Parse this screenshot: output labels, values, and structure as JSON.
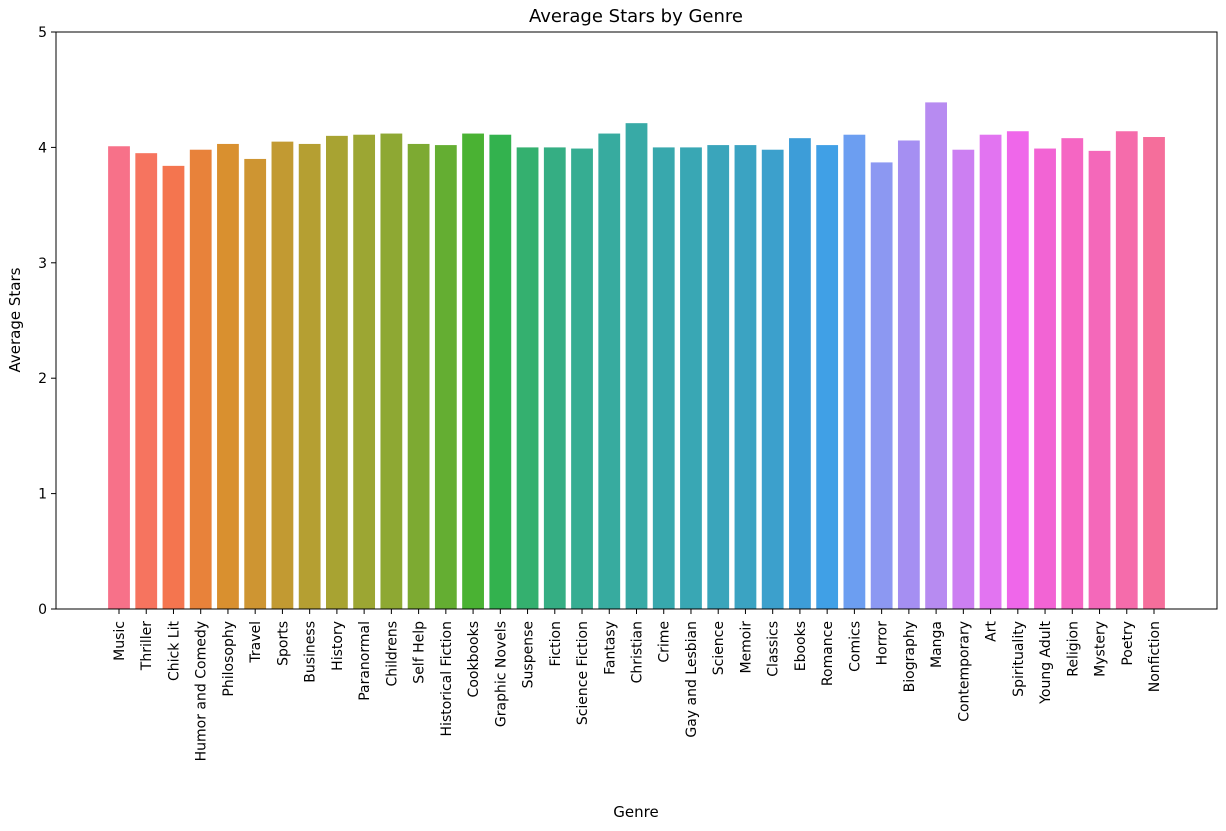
{
  "chart_data": {
    "type": "bar",
    "title": "Average Stars by Genre",
    "xlabel": "Genre",
    "ylabel": "Average Stars",
    "ylim": [
      0,
      5
    ],
    "yticks": [
      0,
      1,
      2,
      3,
      4,
      5
    ],
    "grid": false,
    "categories": [
      "Music",
      "Thriller",
      "Chick Lit",
      "Humor and Comedy",
      "Philosophy",
      "Travel",
      "Sports",
      "Business",
      "History",
      "Paranormal",
      "Childrens",
      "Self Help",
      "Historical Fiction",
      "Cookbooks",
      "Graphic Novels",
      "Suspense",
      "Fiction",
      "Science Fiction",
      "Fantasy",
      "Christian",
      "Crime",
      "Gay and Lesbian",
      "Science",
      "Memoir",
      "Classics",
      "Ebooks",
      "Romance",
      "Comics",
      "Horror",
      "Biography",
      "Manga",
      "Contemporary",
      "Art",
      "Spirituality",
      "Young Adult",
      "Religion",
      "Mystery",
      "Poetry",
      "Nonfiction"
    ],
    "values": [
      4.01,
      3.95,
      3.84,
      3.98,
      4.03,
      3.9,
      4.05,
      4.03,
      4.1,
      4.11,
      4.12,
      4.03,
      4.02,
      4.12,
      4.11,
      4.0,
      4.0,
      3.99,
      4.12,
      4.21,
      4.0,
      4.0,
      4.02,
      4.02,
      3.98,
      4.08,
      4.02,
      4.11,
      3.87,
      4.06,
      4.39,
      3.98,
      4.11,
      4.14,
      3.99,
      4.08,
      3.97,
      4.14,
      4.09
    ],
    "colors": [
      "#f77189",
      "#f6745f",
      "#f4754f",
      "#e8823a",
      "#d9902f",
      "#ce9532",
      "#c29a32",
      "#b59f32",
      "#a8a332",
      "#9ca633",
      "#8ea833",
      "#7daa32",
      "#64ae32",
      "#4ab233",
      "#33b24e",
      "#34b06f",
      "#35ae83",
      "#36ad92",
      "#37ab9f",
      "#38aaa6",
      "#38a8ad",
      "#39a7b4",
      "#3aa5bb",
      "#3ba3c2",
      "#3ca0cc",
      "#3d9dd8",
      "#40a0e6",
      "#6c9ef1",
      "#8c98f2",
      "#a58ff2",
      "#b78bf1",
      "#cc7ff2",
      "#e274f1",
      "#ef67ea",
      "#f264d4",
      "#f566c3",
      "#f468ba",
      "#f56cab",
      "#f56e9b"
    ]
  }
}
